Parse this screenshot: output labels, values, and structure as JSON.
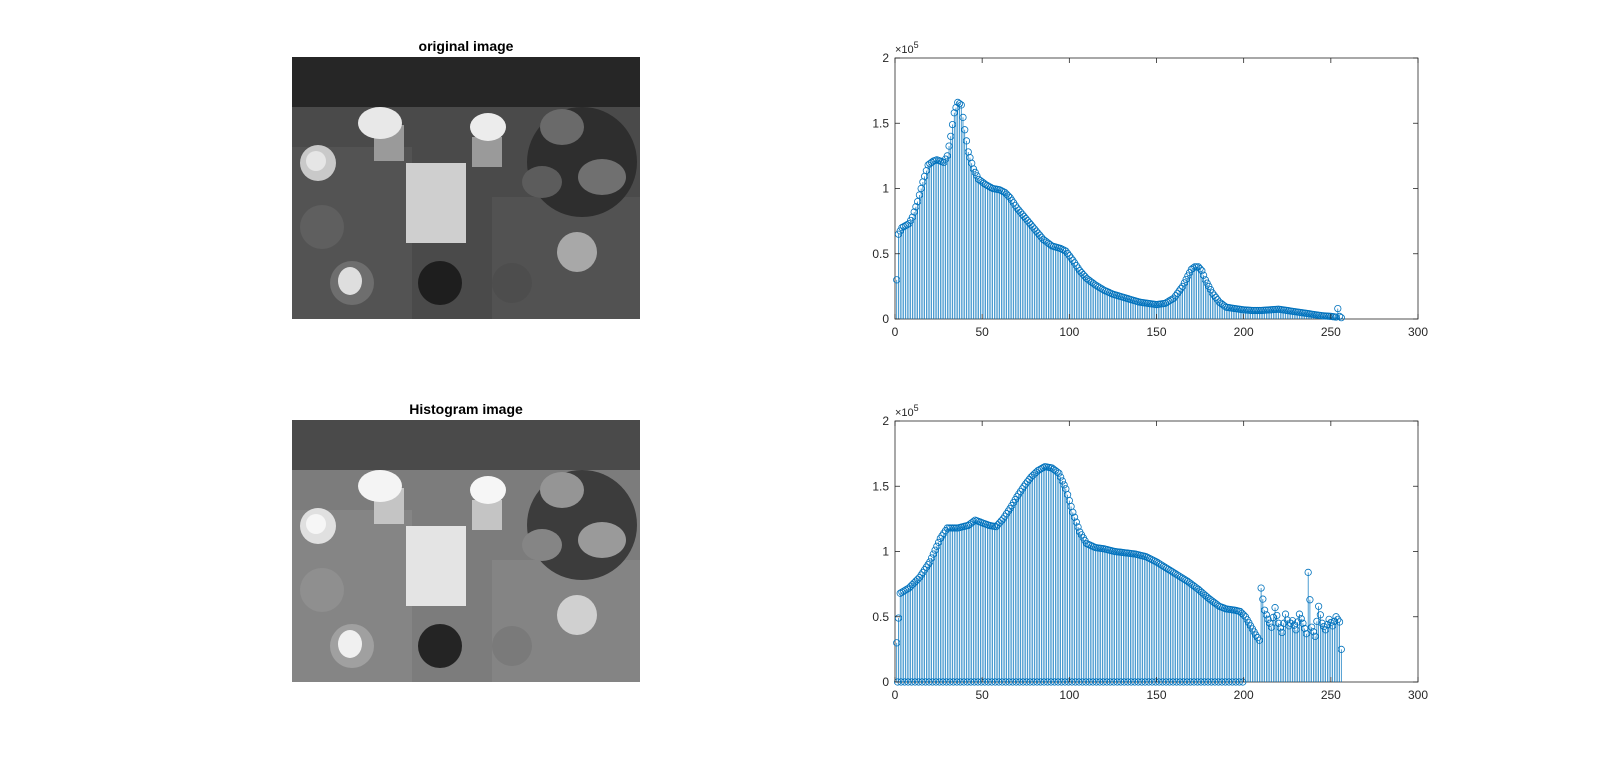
{
  "figure": {
    "panels": [
      {
        "title": "original image",
        "image": "grayscale photo of a table with candles, apple, book and potted plant"
      },
      {
        "title": "Histogram image",
        "image": "histogram-equalized grayscale photo of the same table scene"
      }
    ]
  },
  "colors": {
    "stem": "#0072BD",
    "axis": "#262626",
    "background": "#ffffff"
  },
  "chart_data": [
    {
      "type": "stem",
      "title": "",
      "xlabel": "",
      "ylabel": "",
      "exponent_label": "×10",
      "exponent": "5",
      "xlim": [
        0,
        300
      ],
      "ylim": [
        0,
        200000
      ],
      "xticks": [
        0,
        50,
        100,
        150,
        200,
        250,
        300
      ],
      "xtick_labels": [
        "0",
        "50",
        "100",
        "150",
        "200",
        "250",
        "300"
      ],
      "yticks": [
        0,
        50000,
        100000,
        150000,
        200000
      ],
      "ytick_labels": [
        "0",
        "0.5",
        "1",
        "1.5",
        "2"
      ],
      "grid": false,
      "keypoints": [
        [
          1,
          30000
        ],
        [
          2,
          65000
        ],
        [
          4,
          70000
        ],
        [
          8,
          73000
        ],
        [
          10,
          78000
        ],
        [
          13,
          90000
        ],
        [
          16,
          105000
        ],
        [
          19,
          118000
        ],
        [
          22,
          121000
        ],
        [
          24,
          122000
        ],
        [
          26,
          121000
        ],
        [
          28,
          120000
        ],
        [
          30,
          125000
        ],
        [
          32,
          140000
        ],
        [
          34,
          158000
        ],
        [
          36,
          166000
        ],
        [
          38,
          164000
        ],
        [
          40,
          145000
        ],
        [
          42,
          128000
        ],
        [
          45,
          115000
        ],
        [
          48,
          107000
        ],
        [
          52,
          103000
        ],
        [
          56,
          100000
        ],
        [
          60,
          99000
        ],
        [
          63,
          97000
        ],
        [
          66,
          93000
        ],
        [
          70,
          85000
        ],
        [
          75,
          77000
        ],
        [
          80,
          69000
        ],
        [
          85,
          61000
        ],
        [
          90,
          56000
        ],
        [
          95,
          54000
        ],
        [
          98,
          52000
        ],
        [
          102,
          45000
        ],
        [
          106,
          37000
        ],
        [
          110,
          31000
        ],
        [
          115,
          26000
        ],
        [
          120,
          22000
        ],
        [
          125,
          19000
        ],
        [
          130,
          17000
        ],
        [
          135,
          15000
        ],
        [
          140,
          13000
        ],
        [
          145,
          12000
        ],
        [
          150,
          11000
        ],
        [
          155,
          12000
        ],
        [
          160,
          16000
        ],
        [
          165,
          25000
        ],
        [
          168,
          33000
        ],
        [
          170,
          38000
        ],
        [
          172,
          40000
        ],
        [
          174,
          40000
        ],
        [
          176,
          37000
        ],
        [
          178,
          30000
        ],
        [
          182,
          20000
        ],
        [
          186,
          13000
        ],
        [
          190,
          9000
        ],
        [
          195,
          8000
        ],
        [
          200,
          7000
        ],
        [
          205,
          6500
        ],
        [
          210,
          6500
        ],
        [
          215,
          7000
        ],
        [
          220,
          7500
        ],
        [
          225,
          6500
        ],
        [
          230,
          5500
        ],
        [
          235,
          4500
        ],
        [
          240,
          3500
        ],
        [
          245,
          2500
        ],
        [
          250,
          2000
        ],
        [
          253,
          1500
        ],
        [
          254,
          8000
        ],
        [
          255,
          2000
        ],
        [
          256,
          1000
        ]
      ]
    },
    {
      "type": "stem",
      "title": "",
      "xlabel": "",
      "ylabel": "",
      "exponent_label": "×10",
      "exponent": "5",
      "xlim": [
        0,
        300
      ],
      "ylim": [
        0,
        200000
      ],
      "xticks": [
        0,
        50,
        100,
        150,
        200,
        250,
        300
      ],
      "xtick_labels": [
        "0",
        "50",
        "100",
        "150",
        "200",
        "250",
        "300"
      ],
      "yticks": [
        0,
        50000,
        100000,
        150000,
        200000
      ],
      "ytick_labels": [
        "0",
        "0.5",
        "1",
        "1.5",
        "2"
      ],
      "grid": false,
      "keypoints": [
        [
          1,
          30000
        ],
        [
          3,
          68000
        ],
        [
          8,
          72000
        ],
        [
          14,
          80000
        ],
        [
          20,
          92000
        ],
        [
          26,
          110000
        ],
        [
          30,
          118000
        ],
        [
          36,
          118000
        ],
        [
          42,
          120000
        ],
        [
          46,
          124000
        ],
        [
          50,
          122000
        ],
        [
          54,
          120000
        ],
        [
          58,
          119000
        ],
        [
          62,
          125000
        ],
        [
          66,
          133000
        ],
        [
          70,
          142000
        ],
        [
          74,
          150000
        ],
        [
          78,
          157000
        ],
        [
          82,
          162000
        ],
        [
          86,
          165000
        ],
        [
          90,
          164000
        ],
        [
          94,
          160000
        ],
        [
          98,
          148000
        ],
        [
          102,
          130000
        ],
        [
          106,
          115000
        ],
        [
          110,
          106000
        ],
        [
          115,
          103000
        ],
        [
          120,
          102000
        ],
        [
          126,
          100000
        ],
        [
          132,
          99000
        ],
        [
          138,
          98000
        ],
        [
          144,
          96000
        ],
        [
          150,
          92000
        ],
        [
          156,
          87000
        ],
        [
          162,
          82000
        ],
        [
          168,
          77000
        ],
        [
          174,
          71000
        ],
        [
          180,
          64000
        ],
        [
          186,
          58000
        ],
        [
          190,
          56000
        ],
        [
          195,
          55000
        ],
        [
          198,
          54000
        ],
        [
          201,
          50000
        ],
        [
          204,
          43000
        ],
        [
          207,
          36000
        ],
        [
          209,
          32000
        ],
        [
          210,
          72000
        ],
        [
          212,
          55000
        ],
        [
          214,
          48000
        ],
        [
          216,
          42000
        ],
        [
          218,
          57000
        ],
        [
          220,
          45000
        ],
        [
          222,
          38000
        ],
        [
          224,
          52000
        ],
        [
          226,
          43000
        ],
        [
          228,
          47000
        ],
        [
          230,
          40000
        ],
        [
          232,
          52000
        ],
        [
          234,
          45000
        ],
        [
          236,
          37000
        ],
        [
          237,
          84000
        ],
        [
          239,
          42000
        ],
        [
          241,
          35000
        ],
        [
          243,
          58000
        ],
        [
          245,
          45000
        ],
        [
          247,
          40000
        ],
        [
          249,
          48000
        ],
        [
          251,
          43000
        ],
        [
          253,
          50000
        ],
        [
          255,
          46000
        ],
        [
          256,
          25000
        ]
      ],
      "zero_bins_from": 0,
      "zero_bins_to": 200,
      "zero_bins_step": 2
    }
  ]
}
